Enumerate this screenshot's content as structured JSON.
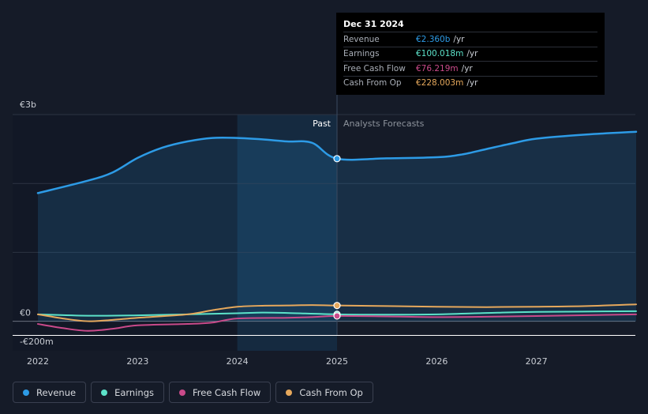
{
  "chart_data": {
    "type": "area",
    "x_ticks": [
      "2022",
      "2023",
      "2024",
      "2025",
      "2026",
      "2027"
    ],
    "y_ticks": [
      "€3b",
      "€0",
      "-€200m"
    ],
    "ylim": [
      -200,
      3000
    ],
    "past_label": "Past",
    "forecast_label": "Analysts Forecasts",
    "divider_x": 2025.0,
    "series": [
      {
        "name": "Revenue",
        "color": "#2d9be6",
        "area": true,
        "points": [
          [
            2022.0,
            1860
          ],
          [
            2022.5,
            2040
          ],
          [
            2022.75,
            2160
          ],
          [
            2023.0,
            2370
          ],
          [
            2023.25,
            2520
          ],
          [
            2023.5,
            2610
          ],
          [
            2023.75,
            2660
          ],
          [
            2024.0,
            2660
          ],
          [
            2024.25,
            2640
          ],
          [
            2024.5,
            2610
          ],
          [
            2024.75,
            2590
          ],
          [
            2025.0,
            2360
          ],
          [
            2025.5,
            2365
          ],
          [
            2026.0,
            2380
          ],
          [
            2026.25,
            2420
          ],
          [
            2026.5,
            2500
          ],
          [
            2026.75,
            2580
          ],
          [
            2027.0,
            2650
          ],
          [
            2027.5,
            2710
          ],
          [
            2028.0,
            2750
          ]
        ]
      },
      {
        "name": "Earnings",
        "color": "#5ce2c9",
        "area": false,
        "points": [
          [
            2022.0,
            100
          ],
          [
            2022.5,
            80
          ],
          [
            2023.0,
            85
          ],
          [
            2023.5,
            100
          ],
          [
            2024.0,
            115
          ],
          [
            2024.25,
            125
          ],
          [
            2024.5,
            120
          ],
          [
            2025.0,
            100
          ],
          [
            2025.5,
            95
          ],
          [
            2026.0,
            100
          ],
          [
            2026.5,
            120
          ],
          [
            2027.0,
            135
          ],
          [
            2028.0,
            145
          ]
        ]
      },
      {
        "name": "Free Cash Flow",
        "color": "#c94a8a",
        "area": false,
        "points": [
          [
            2022.0,
            -40
          ],
          [
            2022.25,
            -100
          ],
          [
            2022.5,
            -140
          ],
          [
            2022.75,
            -110
          ],
          [
            2023.0,
            -60
          ],
          [
            2023.5,
            -40
          ],
          [
            2023.75,
            -20
          ],
          [
            2024.0,
            40
          ],
          [
            2024.5,
            50
          ],
          [
            2024.75,
            60
          ],
          [
            2025.0,
            76.219
          ],
          [
            2025.5,
            70
          ],
          [
            2026.0,
            60
          ],
          [
            2026.5,
            65
          ],
          [
            2027.0,
            75
          ],
          [
            2028.0,
            100
          ]
        ]
      },
      {
        "name": "Cash From Op",
        "color": "#e6a85c",
        "area": false,
        "points": [
          [
            2022.0,
            100
          ],
          [
            2022.25,
            40
          ],
          [
            2022.5,
            0
          ],
          [
            2022.75,
            20
          ],
          [
            2023.0,
            50
          ],
          [
            2023.5,
            100
          ],
          [
            2023.75,
            160
          ],
          [
            2024.0,
            210
          ],
          [
            2024.25,
            225
          ],
          [
            2024.5,
            228
          ],
          [
            2024.75,
            235
          ],
          [
            2025.0,
            228.003
          ],
          [
            2025.5,
            220
          ],
          [
            2026.0,
            210
          ],
          [
            2026.5,
            205
          ],
          [
            2027.0,
            210
          ],
          [
            2027.5,
            220
          ],
          [
            2028.0,
            245
          ]
        ]
      }
    ]
  },
  "tooltip": {
    "date": "Dec 31 2024",
    "rows": [
      {
        "name": "Revenue",
        "value": "€2.360b",
        "unit": "/yr",
        "color": "#2d9be6"
      },
      {
        "name": "Earnings",
        "value": "€100.018m",
        "unit": "/yr",
        "color": "#5ce2c9"
      },
      {
        "name": "Free Cash Flow",
        "value": "€76.219m",
        "unit": "/yr",
        "color": "#c94a8a"
      },
      {
        "name": "Cash From Op",
        "value": "€228.003m",
        "unit": "/yr",
        "color": "#e6a85c"
      }
    ]
  },
  "legend": [
    {
      "label": "Revenue",
      "color": "#2d9be6"
    },
    {
      "label": "Earnings",
      "color": "#5ce2c9"
    },
    {
      "label": "Free Cash Flow",
      "color": "#c94a8a"
    },
    {
      "label": "Cash From Op",
      "color": "#e6a85c"
    }
  ]
}
